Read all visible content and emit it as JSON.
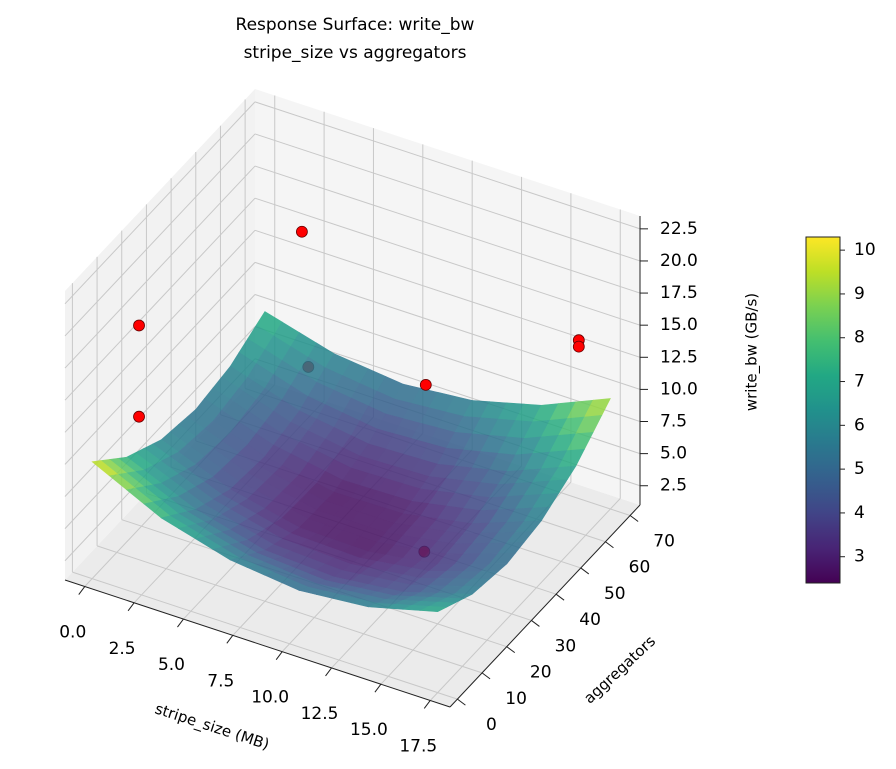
{
  "chart_data": {
    "type": "surface3d",
    "title_lines": [
      "Response Surface: write_bw",
      "stripe_size vs aggregators"
    ],
    "xlabel": "stripe_size (MB)",
    "ylabel": "aggregators",
    "zlabel": "write_bw (GB/s)",
    "xlim": [
      -1,
      18.5
    ],
    "ylim": [
      -3,
      74
    ],
    "zlim": [
      1,
      23.5
    ],
    "xticks": [
      {
        "value": 0,
        "label": "0.0"
      },
      2.5,
      {
        "value": 5,
        "label": "5.0"
      },
      7.5,
      {
        "value": 10,
        "label": "10.0"
      },
      12.5,
      {
        "value": 15,
        "label": "15.0"
      },
      17.5
    ],
    "yticks": [
      0,
      10,
      20,
      30,
      40,
      50,
      60,
      70
    ],
    "zticks": [
      2.5,
      {
        "value": 5,
        "label": "5.0"
      },
      7.5,
      {
        "value": 10,
        "label": "10.0"
      },
      12.5,
      {
        "value": 15,
        "label": "15.0"
      },
      17.5,
      {
        "value": 20,
        "label": "20.0"
      },
      22.5
    ],
    "grid": true,
    "surface": {
      "colormap": "viridis",
      "x": [
        0,
        3.5,
        7,
        10.5,
        14,
        17.5
      ],
      "y": [
        0,
        14,
        28,
        42,
        56,
        70
      ],
      "z": [
        [
          10.1,
          7.6,
          6.1,
          5.6,
          6.1,
          7.5
        ],
        [
          7.5,
          5.3,
          4.0,
          3.7,
          4.4,
          6.0
        ],
        [
          6.0,
          3.9,
          2.8,
          2.7,
          3.6,
          5.4
        ],
        [
          5.4,
          3.6,
          2.7,
          2.8,
          3.8,
          5.9
        ],
        [
          5.9,
          4.2,
          3.5,
          3.8,
          5.0,
          7.3
        ],
        [
          7.3,
          5.8,
          5.3,
          5.8,
          7.2,
          9.6
        ]
      ]
    },
    "points": {
      "color": "#ff0000",
      "x": [
        0.5,
        0.5,
        2.5,
        9.4,
        16.4,
        16.4,
        2.2,
        12.7
      ],
      "y": [
        15,
        15,
        65,
        60,
        66,
        66,
        70,
        33
      ],
      "z": [
        17.9,
        10.8,
        16,
        8.6,
        14.4,
        13.9,
        4.3,
        2.8
      ]
    },
    "colorbar": {
      "lim": [
        2.4,
        10.3
      ],
      "ticks": [
        3,
        4,
        5,
        6,
        7,
        8,
        9,
        10
      ]
    }
  }
}
